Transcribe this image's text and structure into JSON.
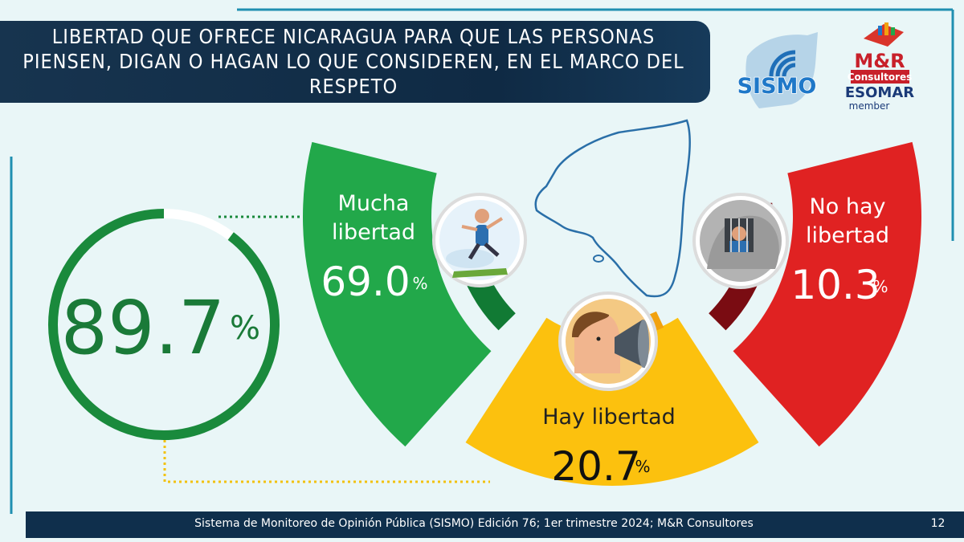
{
  "title": "LIBERTAD QUE OFRECE NICARAGUA PARA QUE LAS PERSONAS PIENSEN, DIGAN O HAGAN LO QUE CONSIDEREN, EN EL MARCO DEL RESPETO",
  "footer": "Sistema de Monitoreo de Opinión Pública (SISMO) Edición 76; 1er trimestre 2024; M&R Consultores",
  "page_number": "12",
  "logos": {
    "sismo": "SISMO",
    "mr": "M&R",
    "mr_sub": "Consultores",
    "esomar": "ESOMAR",
    "esomar_sub": "member"
  },
  "total": {
    "value_text": "89.7",
    "unit": "%",
    "value": 89.7
  },
  "colors": {
    "mucha": "#22a84a",
    "hay": "#fcc10e",
    "no_hay": "#e02222",
    "total_ring": "#1a8a3c",
    "dark_green": "#117a34",
    "orange": "#f2a20f",
    "dark_red": "#7a0c12",
    "title_bg": "#0f2a44"
  },
  "icons": [
    "running-person-icon",
    "megaphone-person-icon",
    "jailed-person-icon",
    "nicaragua-map-icon"
  ],
  "chart_data": {
    "type": "pie",
    "variant": "semicircle-segments",
    "title": "LIBERTAD QUE OFRECE NICARAGUA PARA QUE LAS PERSONAS PIENSEN, DIGAN O HAGAN LO QUE CONSIDEREN, EN EL MARCO DEL RESPETO",
    "categories": [
      "Mucha libertad",
      "Hay libertad",
      "No hay libertad"
    ],
    "values": [
      69.0,
      20.7,
      10.3
    ],
    "value_labels": [
      "69.0",
      "20.7",
      "10.3"
    ],
    "unit": "%",
    "legend": "none"
  }
}
